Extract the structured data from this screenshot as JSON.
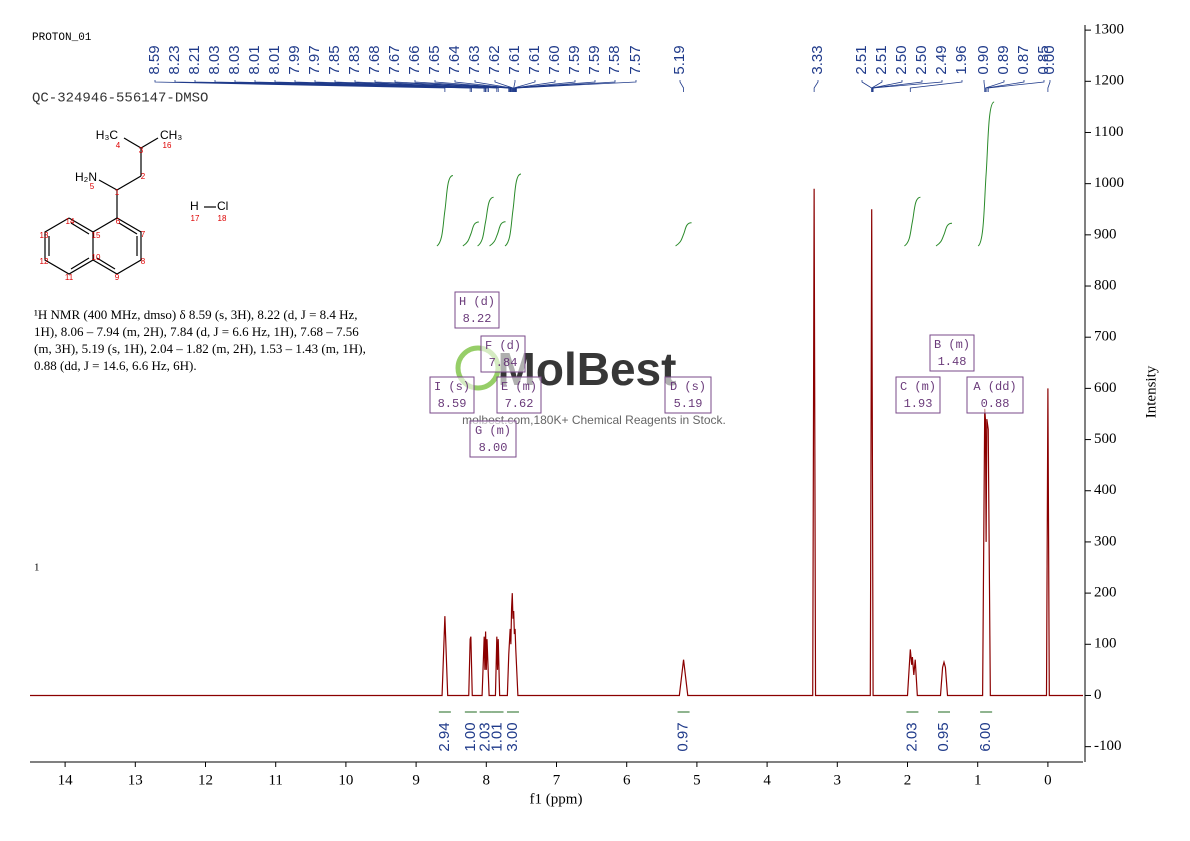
{
  "header": {
    "experiment": "PROTON_01",
    "sample": "QC-324946-556147-DMSO"
  },
  "description": {
    "lines": [
      "¹H NMR (400 MHz, dmso) δ 8.59 (s, 3H), 8.22 (d, J = 8.4 Hz,",
      "1H), 8.06 – 7.94 (m, 2H), 7.84 (d, J = 6.6 Hz, 1H), 7.68 – 7.56",
      "(m, 3H), 5.19 (s, 1H), 2.04 – 1.82 (m, 2H), 1.53 – 1.43 (m, 1H),",
      "0.88 (dd, J = 14.6, 6.6 Hz, 6H)."
    ],
    "stray_mark": "1"
  },
  "structure": {
    "atoms": [
      "H₃C",
      "CH₃",
      "H₂N",
      "H",
      "Cl"
    ],
    "numbers": [
      "4",
      "3",
      "16",
      "2",
      "5",
      "1",
      "14",
      "15",
      "6",
      "7",
      "13",
      "12",
      "10",
      "8",
      "11",
      "9",
      "17",
      "18"
    ]
  },
  "watermark": {
    "brand": "MolBest",
    "tagline": "molbest.com,180K+ Chemical Reagents in Stock."
  },
  "chart_data": {
    "type": "line",
    "xlabel": "f1 (ppm)",
    "ylabel": "Intensity",
    "xlim": [
      14.5,
      -0.5
    ],
    "xticks": [
      14,
      13,
      12,
      11,
      10,
      9,
      8,
      7,
      6,
      5,
      4,
      3,
      2,
      1,
      0
    ],
    "ylim": [
      -130,
      1310
    ],
    "yticks": [
      -100,
      0,
      100,
      200,
      300,
      400,
      500,
      600,
      700,
      800,
      900,
      1000,
      1100,
      1200,
      1300
    ],
    "series": [
      {
        "name": "spectrum",
        "color": "#8b0000",
        "x": [
          14.5,
          8.63,
          8.59,
          8.55,
          8.25,
          8.23,
          8.22,
          8.2,
          8.06,
          8.03,
          8.02,
          8.01,
          8.0,
          7.99,
          7.96,
          7.87,
          7.85,
          7.84,
          7.83,
          7.81,
          7.7,
          7.68,
          7.66,
          7.65,
          7.64,
          7.63,
          7.62,
          7.61,
          7.6,
          7.59,
          7.58,
          7.57,
          7.55,
          5.25,
          5.19,
          5.13,
          3.35,
          3.33,
          3.31,
          2.53,
          2.51,
          2.49,
          2.0,
          1.96,
          1.94,
          1.93,
          1.91,
          1.89,
          1.86,
          1.53,
          1.5,
          1.48,
          1.46,
          1.43,
          0.93,
          0.9,
          0.89,
          0.88,
          0.87,
          0.85,
          0.82,
          0.02,
          0.0,
          -0.02,
          -0.5
        ],
        "values": [
          0,
          0,
          155,
          0,
          0,
          110,
          115,
          0,
          0,
          115,
          50,
          125,
          50,
          110,
          0,
          0,
          115,
          50,
          110,
          0,
          0,
          80,
          130,
          100,
          170,
          200,
          150,
          165,
          120,
          130,
          90,
          60,
          0,
          0,
          70,
          0,
          0,
          990,
          0,
          0,
          950,
          0,
          0,
          90,
          60,
          75,
          40,
          70,
          0,
          0,
          55,
          65,
          55,
          0,
          0,
          560,
          540,
          300,
          540,
          520,
          0,
          0,
          600,
          0,
          0
        ]
      }
    ],
    "peak_labels": [
      "8.59",
      "8.23",
      "8.21",
      "8.03",
      "8.03",
      "8.01",
      "8.01",
      "7.99",
      "7.97",
      "7.85",
      "7.83",
      "7.68",
      "7.67",
      "7.66",
      "7.65",
      "7.64",
      "7.63",
      "7.62",
      "7.61",
      "7.61",
      "7.60",
      "7.59",
      "7.59",
      "7.58",
      "7.57",
      "5.19",
      "3.33",
      "2.51",
      "2.51",
      "2.50",
      "2.50",
      "2.49",
      "1.96",
      "0.90",
      "0.89",
      "0.87",
      "0.85",
      "0.00"
    ],
    "integrals": {
      "x": [
        8.59,
        8.22,
        8.01,
        7.84,
        7.62,
        5.19,
        1.93,
        1.48,
        0.88
      ],
      "values": [
        2.94,
        1.0,
        2.03,
        1.01,
        3.0,
        0.97,
        2.03,
        0.95,
        6.0
      ],
      "value_labels": [
        "2.94",
        "1.00",
        "2.03",
        "1.01",
        "3.00",
        "0.97",
        "2.03",
        "0.95",
        "6.00"
      ]
    },
    "multiplets": [
      {
        "label": "I (s)",
        "shift": "8.59"
      },
      {
        "label": "H (d)",
        "shift": "8.22"
      },
      {
        "label": "F (d)",
        "shift": "7.84"
      },
      {
        "label": "E (m)",
        "shift": "7.62"
      },
      {
        "label": "G (m)",
        "shift": "8.00"
      },
      {
        "label": "D (s)",
        "shift": "5.19"
      },
      {
        "label": "C (m)",
        "shift": "1.93"
      },
      {
        "label": "B (m)",
        "shift": "1.48"
      },
      {
        "label": "A (dd)",
        "shift": "0.88"
      }
    ]
  }
}
